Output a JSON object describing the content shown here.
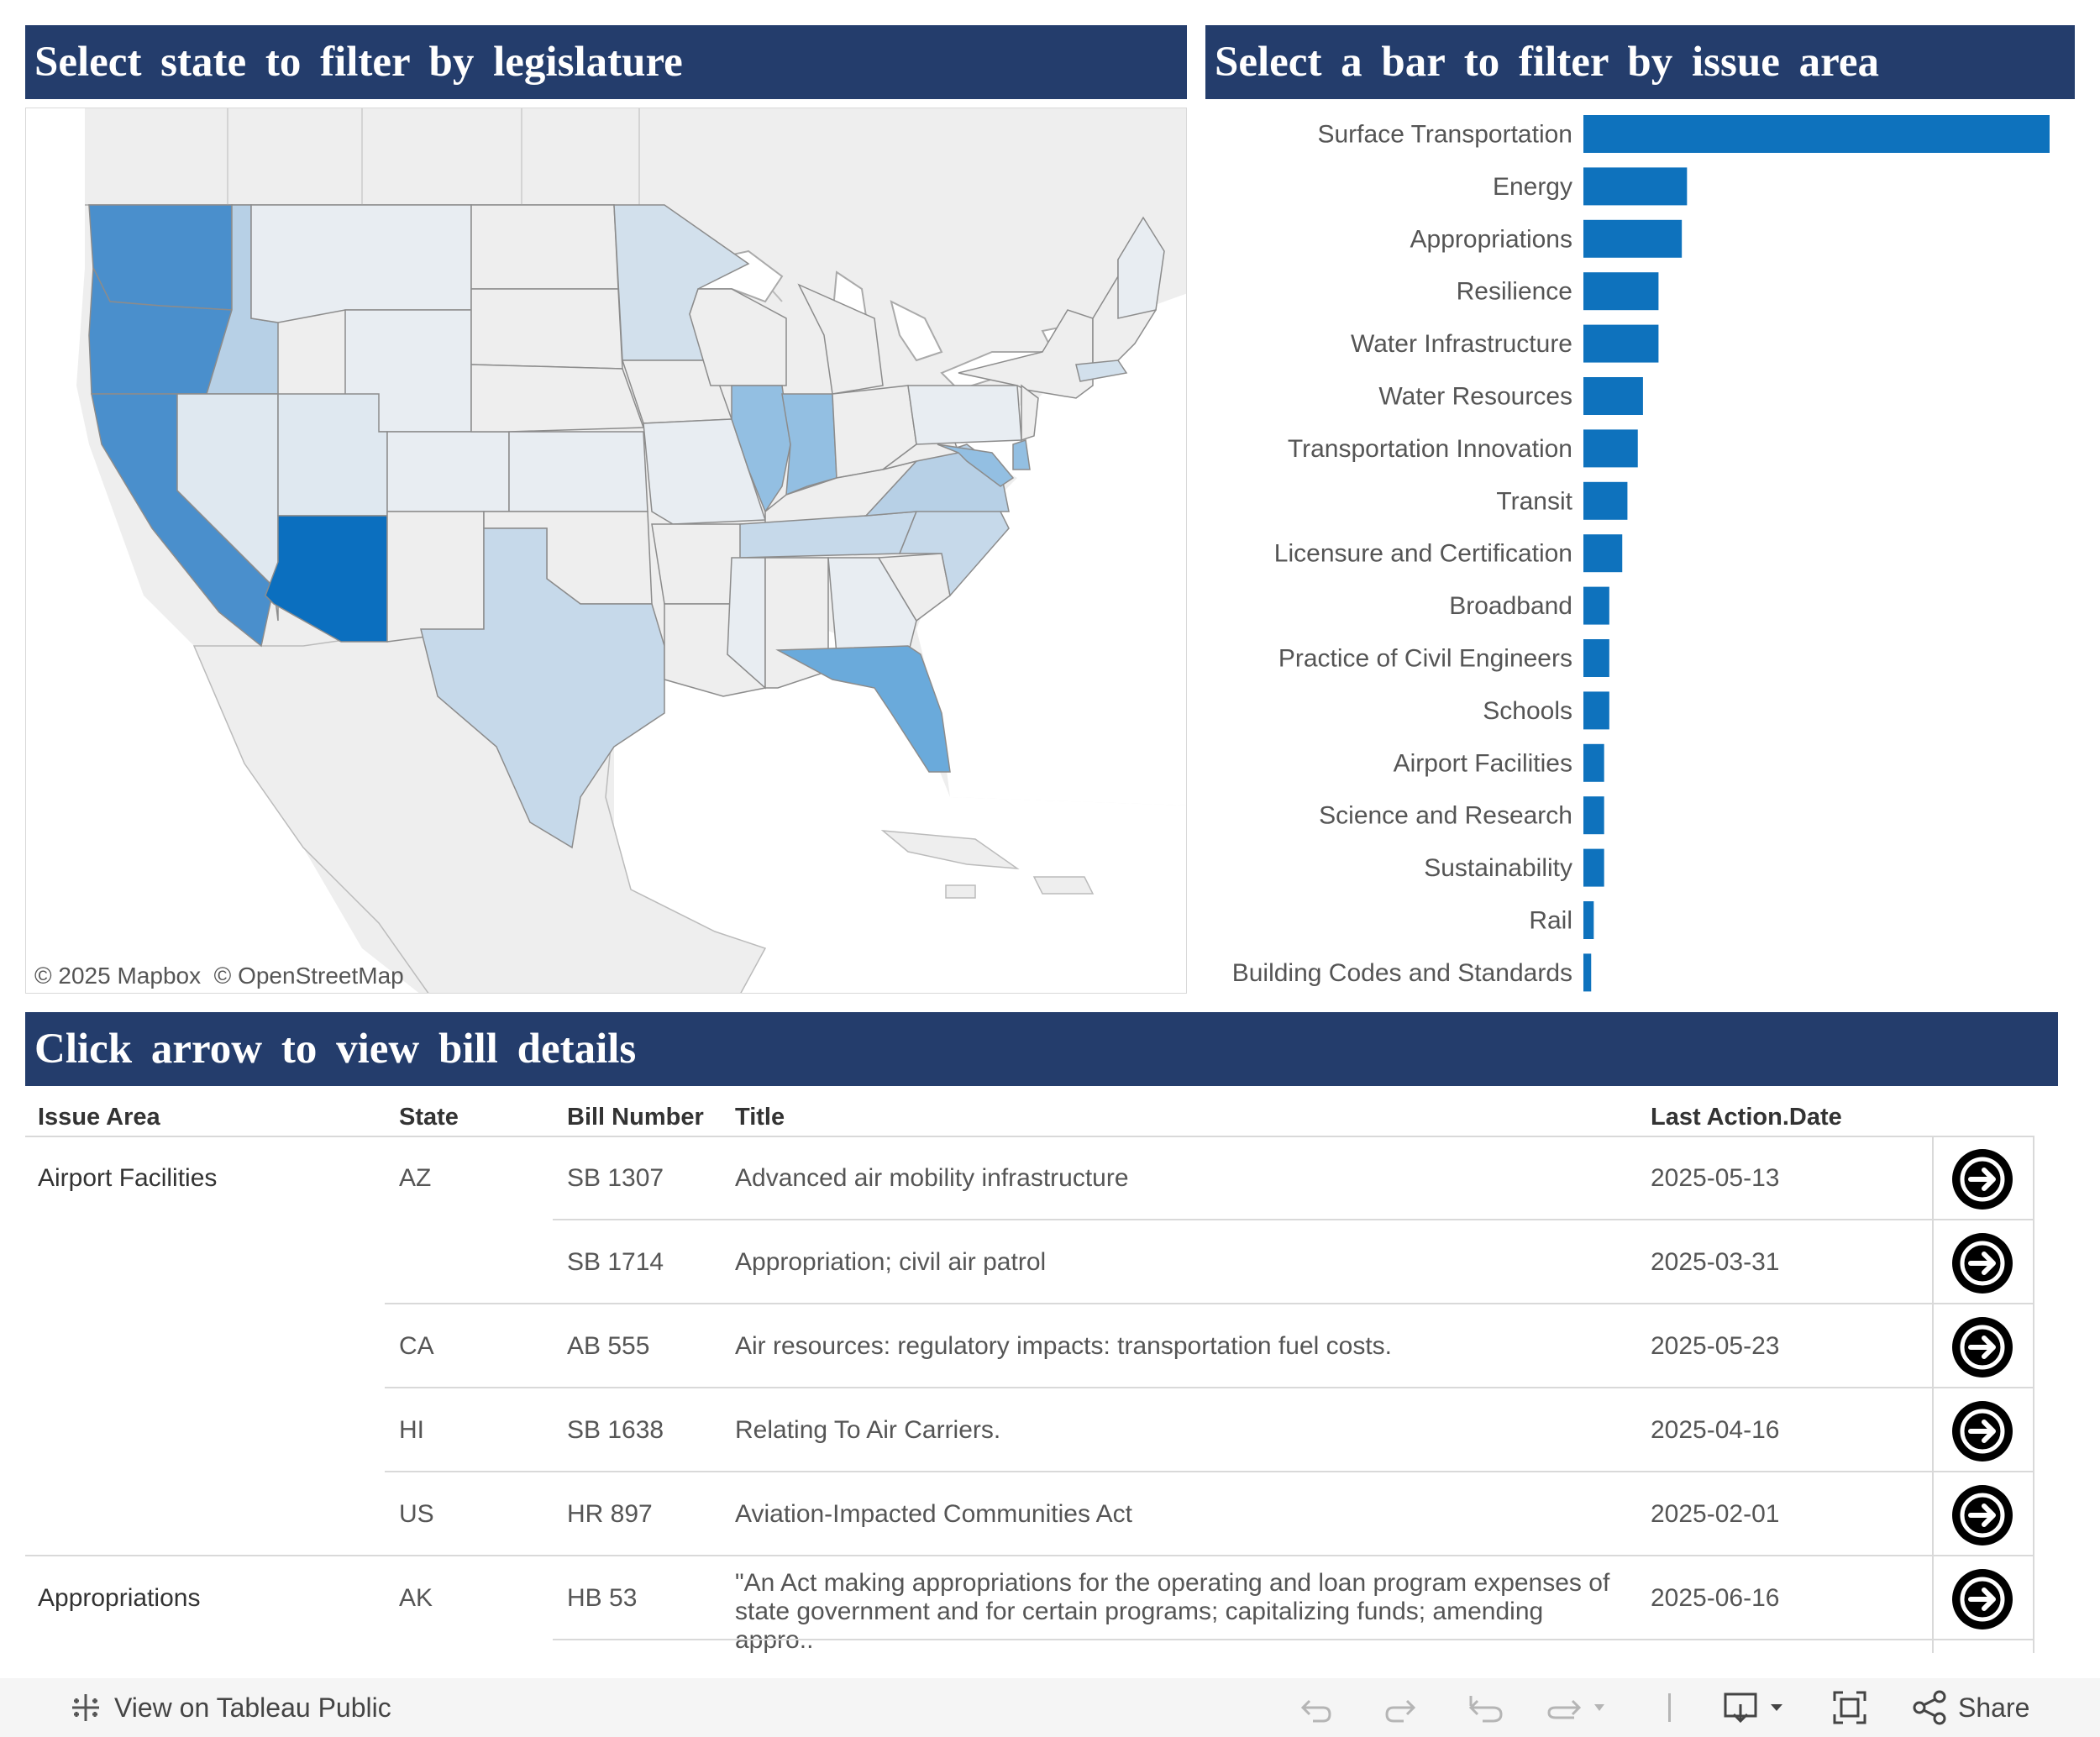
{
  "headers": {
    "map": "Select state to filter by legislature",
    "bars": "Select a bar to filter by issue area",
    "table": "Click arrow to view bill details"
  },
  "map": {
    "attribution_mapbox": "© 2025 Mapbox",
    "attribution_osm": "© OpenStreetMap",
    "colors": {
      "land": "#eeeeee",
      "water": "#ffffff",
      "lowest": "#e8edf2",
      "low": "#d2e0ec",
      "mid": "#b7d0e6",
      "midhigh": "#93bfe2",
      "high": "#4a8fcc",
      "highest": "#0b6fbf"
    }
  },
  "chart_data": {
    "type": "bar",
    "orientation": "horizontal",
    "categories": [
      "Surface Transportation",
      "Energy",
      "Appropriations",
      "Resilience",
      "Water Infrastructure",
      "Water Resources",
      "Transportation Innovation",
      "Transit",
      "Licensure and Certification",
      "Broadband",
      "Practice of Civil Engineers",
      "Schools",
      "Airport Facilities",
      "Science and Research",
      "Sustainability",
      "Rail",
      "Building Codes and Standards"
    ],
    "values": [
      90,
      20,
      19,
      14.5,
      14.5,
      11.5,
      10.5,
      8.5,
      7.5,
      5,
      5,
      5,
      4,
      4,
      4,
      2,
      1.5
    ],
    "bar_color": "#0e72bd",
    "xlabel": "",
    "ylabel": ""
  },
  "table": {
    "columns": [
      "Issue Area",
      "State",
      "Bill Number",
      "Title",
      "Last Action.Date"
    ],
    "rows": [
      {
        "issue": "Airport Facilities",
        "state": "AZ",
        "bill": "SB 1307",
        "title": "Advanced air mobility infrastructure",
        "date": "2025-05-13"
      },
      {
        "issue": "",
        "state": "",
        "bill": "SB 1714",
        "title": "Appropriation; civil air patrol",
        "date": "2025-03-31"
      },
      {
        "issue": "",
        "state": "CA",
        "bill": "AB 555",
        "title": "Air resources: regulatory impacts: transportation fuel costs.",
        "date": "2025-05-23"
      },
      {
        "issue": "",
        "state": "HI",
        "bill": "SB 1638",
        "title": "Relating To Air Carriers.",
        "date": "2025-04-16"
      },
      {
        "issue": "",
        "state": "US",
        "bill": "HR 897",
        "title": "Aviation-Impacted Communities Act",
        "date": "2025-02-01"
      },
      {
        "issue": "Appropriations",
        "state": "AK",
        "bill": "HB 53",
        "title": "\"An Act making appropriations for the operating and loan program expenses of state government and for certain programs; capitalizing funds; amending appro..",
        "date": "2025-06-16"
      }
    ]
  },
  "toolbar": {
    "view_on": "View on Tableau Public",
    "share": "Share"
  }
}
